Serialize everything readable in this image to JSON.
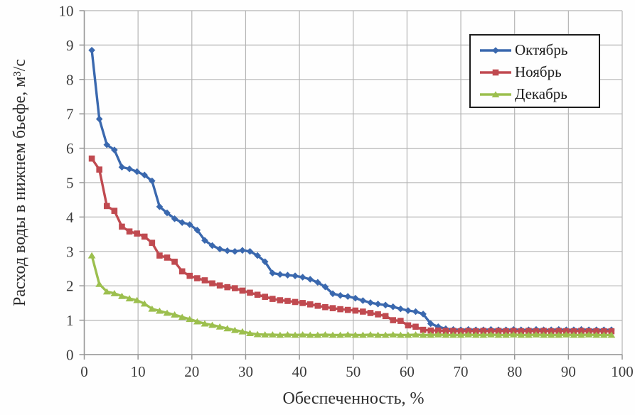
{
  "chart_data": {
    "type": "line",
    "title": "",
    "xlabel": "Обеспеченность, %",
    "ylabel": "Расход воды в нижнем бьефе, м³/с",
    "xlim": [
      0,
      100
    ],
    "ylim": [
      0,
      10
    ],
    "x_ticks": [
      0,
      10,
      20,
      30,
      40,
      50,
      60,
      70,
      80,
      90,
      100
    ],
    "y_ticks": [
      0,
      1,
      2,
      3,
      4,
      5,
      6,
      7,
      8,
      9,
      10
    ],
    "grid": true,
    "legend_position": "top-right",
    "style": {
      "grid_color": "#b5b5b5",
      "axis_color": "#969696",
      "tick_label_color": "#3b3b3b",
      "tick_label_size": 21,
      "line_width": 3.4,
      "marker_size": 9
    },
    "series": [
      {
        "id": "october",
        "name": "Октябрь",
        "color": "#3a68ae",
        "marker": "diamond",
        "points": [
          [
            1.4,
            8.85
          ],
          [
            2.8,
            6.85
          ],
          [
            4.2,
            6.1
          ],
          [
            5.6,
            5.95
          ],
          [
            7.0,
            5.45
          ],
          [
            8.4,
            5.4
          ],
          [
            9.8,
            5.32
          ],
          [
            11.2,
            5.22
          ],
          [
            12.6,
            5.05
          ],
          [
            14.0,
            4.3
          ],
          [
            15.4,
            4.12
          ],
          [
            16.8,
            3.95
          ],
          [
            18.2,
            3.84
          ],
          [
            19.6,
            3.78
          ],
          [
            21.0,
            3.62
          ],
          [
            22.4,
            3.32
          ],
          [
            23.8,
            3.17
          ],
          [
            25.2,
            3.07
          ],
          [
            26.6,
            3.02
          ],
          [
            28.0,
            3.0
          ],
          [
            29.4,
            3.03
          ],
          [
            30.8,
            3.0
          ],
          [
            32.2,
            2.88
          ],
          [
            33.6,
            2.7
          ],
          [
            35.0,
            2.37
          ],
          [
            36.4,
            2.33
          ],
          [
            37.8,
            2.31
          ],
          [
            39.2,
            2.29
          ],
          [
            40.6,
            2.25
          ],
          [
            42.0,
            2.19
          ],
          [
            43.4,
            2.1
          ],
          [
            44.8,
            1.97
          ],
          [
            46.2,
            1.77
          ],
          [
            47.6,
            1.72
          ],
          [
            49.0,
            1.69
          ],
          [
            50.4,
            1.64
          ],
          [
            51.8,
            1.57
          ],
          [
            53.2,
            1.51
          ],
          [
            54.6,
            1.47
          ],
          [
            56.0,
            1.44
          ],
          [
            57.4,
            1.39
          ],
          [
            58.8,
            1.33
          ],
          [
            60.2,
            1.28
          ],
          [
            61.6,
            1.25
          ],
          [
            63.0,
            1.18
          ],
          [
            64.4,
            0.9
          ],
          [
            65.8,
            0.81
          ],
          [
            67.2,
            0.75
          ],
          [
            68.6,
            0.73
          ],
          [
            70.0,
            0.72
          ],
          [
            71.4,
            0.73
          ],
          [
            72.8,
            0.72
          ],
          [
            74.2,
            0.72
          ],
          [
            75.6,
            0.73
          ],
          [
            77.0,
            0.72
          ],
          [
            78.4,
            0.72
          ],
          [
            79.8,
            0.73
          ],
          [
            81.2,
            0.72
          ],
          [
            82.6,
            0.72
          ],
          [
            84.0,
            0.73
          ],
          [
            85.4,
            0.72
          ],
          [
            86.8,
            0.72
          ],
          [
            88.2,
            0.73
          ],
          [
            89.6,
            0.72
          ],
          [
            91.0,
            0.72
          ],
          [
            92.4,
            0.73
          ],
          [
            93.8,
            0.72
          ],
          [
            95.2,
            0.72
          ],
          [
            96.6,
            0.72
          ],
          [
            98.0,
            0.72
          ]
        ]
      },
      {
        "id": "november",
        "name": "Ноябрь",
        "color": "#c04a50",
        "marker": "square",
        "points": [
          [
            1.4,
            5.7
          ],
          [
            2.8,
            5.38
          ],
          [
            4.2,
            4.32
          ],
          [
            5.6,
            4.18
          ],
          [
            7.0,
            3.72
          ],
          [
            8.4,
            3.58
          ],
          [
            9.8,
            3.52
          ],
          [
            11.2,
            3.43
          ],
          [
            12.6,
            3.25
          ],
          [
            14.0,
            2.88
          ],
          [
            15.4,
            2.82
          ],
          [
            16.8,
            2.7
          ],
          [
            18.2,
            2.42
          ],
          [
            19.6,
            2.29
          ],
          [
            21.0,
            2.22
          ],
          [
            22.4,
            2.16
          ],
          [
            23.8,
            2.07
          ],
          [
            25.2,
            2.01
          ],
          [
            26.6,
            1.96
          ],
          [
            28.0,
            1.93
          ],
          [
            29.4,
            1.86
          ],
          [
            30.8,
            1.8
          ],
          [
            32.2,
            1.74
          ],
          [
            33.6,
            1.68
          ],
          [
            35.0,
            1.62
          ],
          [
            36.4,
            1.58
          ],
          [
            37.8,
            1.56
          ],
          [
            39.2,
            1.53
          ],
          [
            40.6,
            1.5
          ],
          [
            42.0,
            1.46
          ],
          [
            43.4,
            1.42
          ],
          [
            44.8,
            1.38
          ],
          [
            46.2,
            1.35
          ],
          [
            47.6,
            1.32
          ],
          [
            49.0,
            1.3
          ],
          [
            50.4,
            1.28
          ],
          [
            51.8,
            1.25
          ],
          [
            53.2,
            1.21
          ],
          [
            54.6,
            1.17
          ],
          [
            56.0,
            1.12
          ],
          [
            57.4,
            1.0
          ],
          [
            58.8,
            0.98
          ],
          [
            60.2,
            0.85
          ],
          [
            61.6,
            0.81
          ],
          [
            63.0,
            0.72
          ],
          [
            64.4,
            0.7
          ],
          [
            65.8,
            0.7
          ],
          [
            67.2,
            0.69
          ],
          [
            68.6,
            0.69
          ],
          [
            70.0,
            0.68
          ],
          [
            71.4,
            0.69
          ],
          [
            72.8,
            0.68
          ],
          [
            74.2,
            0.69
          ],
          [
            75.6,
            0.68
          ],
          [
            77.0,
            0.69
          ],
          [
            78.4,
            0.68
          ],
          [
            79.8,
            0.69
          ],
          [
            81.2,
            0.68
          ],
          [
            82.6,
            0.69
          ],
          [
            84.0,
            0.68
          ],
          [
            85.4,
            0.69
          ],
          [
            86.8,
            0.68
          ],
          [
            88.2,
            0.69
          ],
          [
            89.6,
            0.68
          ],
          [
            91.0,
            0.68
          ],
          [
            92.4,
            0.69
          ],
          [
            93.8,
            0.68
          ],
          [
            95.2,
            0.68
          ],
          [
            96.6,
            0.68
          ],
          [
            98.0,
            0.68
          ]
        ]
      },
      {
        "id": "december",
        "name": "Декабрь",
        "color": "#9cbf4e",
        "marker": "triangle",
        "points": [
          [
            1.4,
            2.88
          ],
          [
            2.8,
            2.05
          ],
          [
            4.2,
            1.83
          ],
          [
            5.6,
            1.78
          ],
          [
            7.0,
            1.7
          ],
          [
            8.4,
            1.63
          ],
          [
            9.8,
            1.58
          ],
          [
            11.2,
            1.48
          ],
          [
            12.6,
            1.33
          ],
          [
            14.0,
            1.27
          ],
          [
            15.4,
            1.21
          ],
          [
            16.8,
            1.16
          ],
          [
            18.2,
            1.09
          ],
          [
            19.6,
            1.03
          ],
          [
            21.0,
            0.96
          ],
          [
            22.4,
            0.9
          ],
          [
            23.8,
            0.86
          ],
          [
            25.2,
            0.81
          ],
          [
            26.6,
            0.76
          ],
          [
            28.0,
            0.71
          ],
          [
            29.4,
            0.67
          ],
          [
            30.8,
            0.62
          ],
          [
            32.2,
            0.59
          ],
          [
            33.6,
            0.58
          ],
          [
            35.0,
            0.58
          ],
          [
            36.4,
            0.57
          ],
          [
            37.8,
            0.58
          ],
          [
            39.2,
            0.57
          ],
          [
            40.6,
            0.58
          ],
          [
            42.0,
            0.57
          ],
          [
            43.4,
            0.57
          ],
          [
            44.8,
            0.58
          ],
          [
            46.2,
            0.57
          ],
          [
            47.6,
            0.57
          ],
          [
            49.0,
            0.58
          ],
          [
            50.4,
            0.57
          ],
          [
            51.8,
            0.57
          ],
          [
            53.2,
            0.58
          ],
          [
            54.6,
            0.57
          ],
          [
            56.0,
            0.57
          ],
          [
            57.4,
            0.58
          ],
          [
            58.8,
            0.57
          ],
          [
            60.2,
            0.57
          ],
          [
            61.6,
            0.58
          ],
          [
            63.0,
            0.57
          ],
          [
            64.4,
            0.57
          ],
          [
            65.8,
            0.58
          ],
          [
            67.2,
            0.57
          ],
          [
            68.6,
            0.57
          ],
          [
            70.0,
            0.57
          ],
          [
            71.4,
            0.58
          ],
          [
            72.8,
            0.57
          ],
          [
            74.2,
            0.57
          ],
          [
            75.6,
            0.58
          ],
          [
            77.0,
            0.57
          ],
          [
            78.4,
            0.57
          ],
          [
            79.8,
            0.58
          ],
          [
            81.2,
            0.57
          ],
          [
            82.6,
            0.57
          ],
          [
            84.0,
            0.58
          ],
          [
            85.4,
            0.57
          ],
          [
            86.8,
            0.57
          ],
          [
            88.2,
            0.57
          ],
          [
            89.6,
            0.58
          ],
          [
            91.0,
            0.57
          ],
          [
            92.4,
            0.57
          ],
          [
            93.8,
            0.58
          ],
          [
            95.2,
            0.57
          ],
          [
            96.6,
            0.57
          ],
          [
            98.0,
            0.57
          ]
        ]
      }
    ]
  }
}
